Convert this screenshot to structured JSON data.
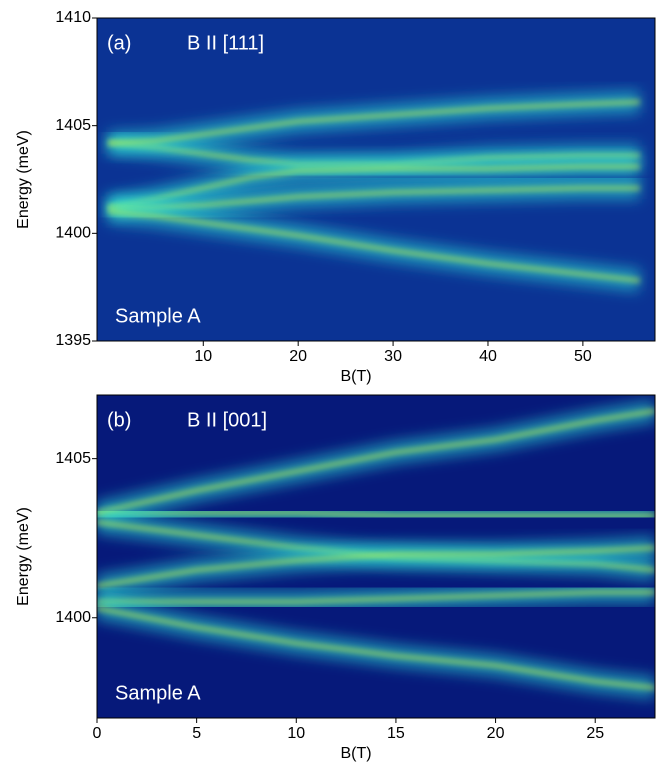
{
  "chart_data": [
    {
      "type": "contour",
      "label": "(a)",
      "title": "B II [111]",
      "annotation": "Sample A",
      "xlabel": "B(T)",
      "ylabel": "Energy (meV)",
      "xlim": [
        -1.2,
        57.6
      ],
      "ylim": [
        1395,
        1410
      ],
      "xticks": [
        10,
        20,
        30,
        40,
        50
      ],
      "yticks": [
        1395,
        1400,
        1405,
        1410
      ],
      "background": "#0b3394",
      "color": "#2fe6d8",
      "core_color": "#b8f04a",
      "x": [
        0,
        5,
        10,
        15,
        20,
        30,
        40,
        50,
        56
      ],
      "series": [
        {
          "values": [
            1404.2,
            1404.0,
            1403.7,
            1403.4,
            1403.2,
            1403.2,
            1403.5,
            1403.6,
            1403.6
          ]
        },
        {
          "values": [
            1404.2,
            1404.3,
            1404.6,
            1404.9,
            1405.2,
            1405.5,
            1405.8,
            1406.0,
            1406.1
          ]
        },
        {
          "values": [
            1401.2,
            1401.6,
            1402.1,
            1402.6,
            1402.9,
            1403.0,
            1403.0,
            1403.1,
            1403.1
          ]
        },
        {
          "values": [
            1401.2,
            1401.2,
            1401.3,
            1401.5,
            1401.7,
            1401.9,
            1402.0,
            1402.1,
            1402.1
          ]
        },
        {
          "values": [
            1401.0,
            1400.8,
            1400.5,
            1400.2,
            1399.9,
            1399.2,
            1398.6,
            1398.1,
            1397.8
          ]
        }
      ]
    },
    {
      "type": "contour",
      "label": "(b)",
      "title": "B II [001]",
      "annotation": "Sample A",
      "xlabel": "B(T)",
      "ylabel": "Energy (meV)",
      "xlim": [
        0,
        28
      ],
      "ylim": [
        1396.85,
        1407.0
      ],
      "xticks": [
        0,
        5,
        10,
        15,
        20,
        25
      ],
      "yticks": [
        1400,
        1405
      ],
      "background": "#06197a",
      "color": "#2fe6d8",
      "core_color": "#b8f04a",
      "x": [
        0,
        5,
        10,
        15,
        20,
        25,
        28
      ],
      "series": [
        {
          "values": [
            1403.3,
            1403.3,
            1403.3,
            1403.2,
            1403.2,
            1403.2,
            1403.2
          ]
        },
        {
          "values": [
            1403.3,
            1404.0,
            1404.6,
            1405.2,
            1405.6,
            1406.2,
            1406.5
          ]
        },
        {
          "values": [
            1403.0,
            1402.6,
            1402.2,
            1401.9,
            1401.8,
            1401.7,
            1401.5
          ]
        },
        {
          "values": [
            1401.0,
            1401.5,
            1401.8,
            1402.0,
            1402.0,
            1402.1,
            1402.2
          ]
        },
        {
          "values": [
            1400.5,
            1400.5,
            1400.5,
            1400.6,
            1400.7,
            1400.8,
            1400.8
          ]
        },
        {
          "values": [
            1400.3,
            1399.7,
            1399.2,
            1398.8,
            1398.5,
            1398.0,
            1397.8
          ]
        }
      ]
    }
  ]
}
